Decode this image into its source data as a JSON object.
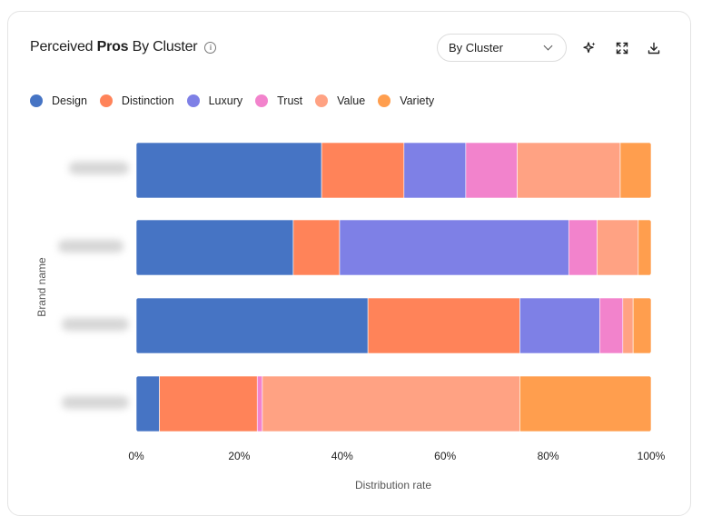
{
  "header": {
    "title_pre": "Perceived ",
    "title_bold": "Pros",
    "title_post": " By Cluster",
    "info_icon": "info-icon"
  },
  "toolbar": {
    "select_value": "By Cluster",
    "icons": [
      "sparkle-icon",
      "expand-icon",
      "download-icon"
    ]
  },
  "chart_data": {
    "type": "bar",
    "orientation": "horizontal",
    "stacked": true,
    "xlabel": "Distribution rate",
    "ylabel": "Brand name",
    "xlim": [
      0,
      100
    ],
    "x_ticks": [
      "0%",
      "20%",
      "40%",
      "60%",
      "80%",
      "100%"
    ],
    "categories": [
      "",
      "",
      "",
      ""
    ],
    "legend_position": "top-left",
    "series": [
      {
        "name": "Design",
        "color": "#4674c4",
        "values": [
          36,
          30.5,
          45,
          4.5
        ]
      },
      {
        "name": "Distinction",
        "color": "#ff8359",
        "values": [
          16,
          9,
          29.5,
          19
        ]
      },
      {
        "name": "Luxury",
        "color": "#7e80e6",
        "values": [
          12,
          44.5,
          15.5,
          0
        ]
      },
      {
        "name": "Trust",
        "color": "#f283cc",
        "values": [
          10,
          5.5,
          4.5,
          1
        ]
      },
      {
        "name": "Value",
        "color": "#ffa283",
        "values": [
          20,
          8,
          2,
          50
        ]
      },
      {
        "name": "Variety",
        "color": "#ff9e4e",
        "values": [
          6,
          2.5,
          3.5,
          25.5
        ]
      }
    ]
  }
}
